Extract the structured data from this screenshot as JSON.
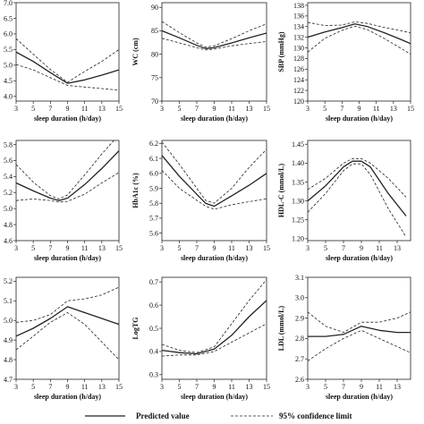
{
  "chart_data": [
    {
      "type": "line",
      "ylabel": "",
      "xlabel": "sleep duration (h/day)",
      "xticks": [
        3,
        5,
        7,
        9,
        11,
        13,
        15
      ],
      "yticks": [
        "4.0",
        "4.5",
        "5.0",
        "5.5",
        "6.0",
        "6.5",
        "7.0"
      ],
      "xlim": [
        3,
        15
      ],
      "ylim": [
        3.85,
        7.0
      ],
      "series": [
        {
          "name": "Predicted value",
          "x": [
            3,
            5,
            7,
            9,
            11,
            13,
            15
          ],
          "y": [
            5.42,
            5.12,
            4.76,
            4.42,
            4.53,
            4.68,
            4.85
          ]
        },
        {
          "name": "95% confidence limit",
          "x": [
            3,
            5,
            7,
            9,
            11,
            13,
            15
          ],
          "y": [
            5.85,
            5.35,
            4.86,
            4.45,
            4.8,
            5.12,
            5.5
          ]
        },
        {
          "name": "95% confidence limit",
          "x": [
            3,
            5,
            7,
            9,
            11,
            13,
            15
          ],
          "y": [
            5.02,
            4.85,
            4.6,
            4.35,
            4.3,
            4.25,
            4.2
          ]
        }
      ]
    },
    {
      "type": "line",
      "ylabel": "WC (cm)",
      "xlabel": "sleep duration (h/day)",
      "xticks": [
        3,
        5,
        7,
        9,
        11,
        13,
        15
      ],
      "yticks": [
        "70",
        "75",
        "80",
        "85",
        "90"
      ],
      "xlim": [
        3,
        15
      ],
      "ylim": [
        70,
        91
      ],
      "series": [
        {
          "name": "Predicted value",
          "x": [
            3,
            5,
            7,
            8,
            9,
            11,
            13,
            15
          ],
          "y": [
            85,
            83.5,
            81.9,
            81.2,
            81.4,
            82.4,
            83.5,
            84.5
          ]
        },
        {
          "name": "95% confidence limit",
          "x": [
            3,
            5,
            7,
            8,
            9,
            11,
            13,
            15
          ],
          "y": [
            87,
            84.6,
            82.4,
            81.5,
            81.8,
            83.3,
            85,
            86.5
          ]
        },
        {
          "name": "95% confidence limit",
          "x": [
            3,
            5,
            7,
            8,
            9,
            11,
            13,
            15
          ],
          "y": [
            83.4,
            82.4,
            81.4,
            80.9,
            81.1,
            81.8,
            82.3,
            82.7
          ]
        }
      ]
    },
    {
      "type": "line",
      "ylabel": "SBP (mmHg)",
      "xlabel": "sleep duration (h/day)",
      "xticks": [
        3,
        5,
        7,
        9,
        11,
        13,
        15
      ],
      "yticks": [
        "120",
        "122",
        "124",
        "126",
        "128",
        "130",
        "132",
        "134",
        "136",
        "138"
      ],
      "xlim": [
        3,
        15
      ],
      "ylim": [
        120,
        138.5
      ],
      "series": [
        {
          "name": "Predicted value",
          "x": [
            3,
            5,
            7,
            8.5,
            10,
            12,
            14,
            15
          ],
          "y": [
            132,
            133,
            133.8,
            134.5,
            134,
            132.8,
            131.5,
            130.8
          ]
        },
        {
          "name": "95% confidence limit",
          "x": [
            3,
            5,
            7,
            8.5,
            10,
            12,
            14,
            15
          ],
          "y": [
            134.8,
            134.2,
            134.3,
            134.9,
            134.6,
            133.8,
            133.2,
            132.8
          ]
        },
        {
          "name": "95% confidence limit",
          "x": [
            3,
            5,
            7,
            8.5,
            10,
            12,
            14,
            15
          ],
          "y": [
            129.2,
            131.8,
            133.3,
            134.1,
            133.4,
            131.7,
            129.8,
            128.8
          ]
        }
      ]
    },
    {
      "type": "line",
      "ylabel": "",
      "xlabel": "sleep duration (h/day)",
      "xticks": [
        3,
        5,
        7,
        9,
        11,
        13,
        15
      ],
      "yticks": [
        "4.6",
        "4.8",
        "5.0",
        "5.2",
        "5.4",
        "5.6",
        "5.8"
      ],
      "xlim": [
        3,
        15
      ],
      "ylim": [
        4.6,
        5.85
      ],
      "series": [
        {
          "name": "Predicted value",
          "x": [
            3,
            5,
            7,
            8,
            9,
            11,
            13,
            15
          ],
          "y": [
            5.32,
            5.22,
            5.13,
            5.1,
            5.13,
            5.3,
            5.5,
            5.72
          ]
        },
        {
          "name": "95% confidence limit",
          "x": [
            3,
            5,
            7,
            8,
            9,
            11,
            13,
            15
          ],
          "y": [
            5.55,
            5.33,
            5.16,
            5.12,
            5.17,
            5.42,
            5.68,
            5.92
          ]
        },
        {
          "name": "95% confidence limit",
          "x": [
            3,
            5,
            7,
            8,
            9,
            11,
            13,
            15
          ],
          "y": [
            5.1,
            5.12,
            5.1,
            5.08,
            5.09,
            5.18,
            5.32,
            5.45
          ]
        }
      ]
    },
    {
      "type": "line",
      "ylabel": "HbA1c (%)",
      "xlabel": "sleep duration (h/day)",
      "xticks": [
        3,
        5,
        7,
        9,
        11,
        13,
        15
      ],
      "yticks": [
        "5.6",
        "5.7",
        "5.8",
        "5.9",
        "6.0",
        "6.1",
        "6.2"
      ],
      "xlim": [
        3,
        15
      ],
      "ylim": [
        5.55,
        6.22
      ],
      "series": [
        {
          "name": "Predicted value",
          "x": [
            3,
            5,
            7,
            8,
            9,
            11,
            13,
            15
          ],
          "y": [
            6.12,
            5.98,
            5.86,
            5.8,
            5.78,
            5.85,
            5.92,
            6.0
          ]
        },
        {
          "name": "95% confidence limit",
          "x": [
            3,
            5,
            7,
            8,
            9,
            11,
            13,
            15
          ],
          "y": [
            6.21,
            6.06,
            5.9,
            5.82,
            5.8,
            5.9,
            6.04,
            6.16
          ]
        },
        {
          "name": "95% confidence limit",
          "x": [
            3,
            5,
            7,
            8,
            9,
            11,
            13,
            15
          ],
          "y": [
            6.02,
            5.9,
            5.82,
            5.78,
            5.76,
            5.79,
            5.81,
            5.83
          ]
        }
      ]
    },
    {
      "type": "line",
      "ylabel": "HDL-C (mmol/L)",
      "xlabel": "sleep duration (h/day)",
      "xticks": [
        3,
        5,
        7,
        9,
        11,
        13
      ],
      "yticks": [
        "1.20",
        "1.25",
        "1.30",
        "1.35",
        "1.40",
        "1.45"
      ],
      "xlim": [
        3,
        14.5
      ],
      "ylim": [
        1.195,
        1.46
      ],
      "series": [
        {
          "name": "Predicted value",
          "x": [
            3,
            5,
            7,
            8,
            9,
            10,
            12,
            14
          ],
          "y": [
            1.3,
            1.34,
            1.39,
            1.405,
            1.405,
            1.39,
            1.32,
            1.26
          ]
        },
        {
          "name": "95% confidence limit",
          "x": [
            3,
            5,
            7,
            8,
            9,
            10,
            12,
            14
          ],
          "y": [
            1.33,
            1.36,
            1.4,
            1.412,
            1.412,
            1.4,
            1.36,
            1.31
          ]
        },
        {
          "name": "95% confidence limit",
          "x": [
            3,
            5,
            7,
            8,
            9,
            10,
            12,
            14
          ],
          "y": [
            1.27,
            1.32,
            1.38,
            1.398,
            1.398,
            1.37,
            1.28,
            1.205
          ]
        }
      ]
    },
    {
      "type": "line",
      "ylabel": "",
      "xlabel": "sleep duration (h/day)",
      "xticks": [
        3,
        5,
        7,
        9,
        11,
        13,
        15
      ],
      "yticks": [
        "4.7",
        "4.8",
        "4.9",
        "5.0",
        "5.1",
        "5.2"
      ],
      "xlim": [
        3,
        15
      ],
      "ylim": [
        4.7,
        5.22
      ],
      "series": [
        {
          "name": "Predicted value",
          "x": [
            3,
            5,
            7,
            9,
            11,
            13,
            15
          ],
          "y": [
            4.92,
            4.96,
            5.01,
            5.07,
            5.04,
            5.01,
            4.98
          ]
        },
        {
          "name": "95% confidence limit",
          "x": [
            3,
            5,
            7,
            9,
            11,
            13,
            15
          ],
          "y": [
            4.99,
            5.0,
            5.03,
            5.1,
            5.11,
            5.13,
            5.17
          ]
        },
        {
          "name": "95% confidence limit",
          "x": [
            3,
            5,
            7,
            9,
            11,
            13,
            15
          ],
          "y": [
            4.85,
            4.92,
            4.99,
            5.04,
            4.98,
            4.89,
            4.8
          ]
        }
      ]
    },
    {
      "type": "line",
      "ylabel": "LogTG",
      "xlabel": "sleep duration (h/day)",
      "xticks": [
        3,
        5,
        7,
        9,
        11,
        13,
        15
      ],
      "yticks": [
        "0.3",
        "0.4",
        "0.5",
        "0.6",
        "0.7"
      ],
      "xlim": [
        3,
        15
      ],
      "ylim": [
        0.28,
        0.72
      ],
      "series": [
        {
          "name": "Predicted value",
          "x": [
            3,
            5,
            7,
            9,
            11,
            13,
            15
          ],
          "y": [
            0.405,
            0.395,
            0.39,
            0.41,
            0.47,
            0.55,
            0.62
          ]
        },
        {
          "name": "95% confidence limit",
          "x": [
            3,
            5,
            7,
            9,
            11,
            13,
            15
          ],
          "y": [
            0.43,
            0.405,
            0.395,
            0.42,
            0.52,
            0.62,
            0.71
          ]
        },
        {
          "name": "95% confidence limit",
          "x": [
            3,
            5,
            7,
            9,
            11,
            13,
            15
          ],
          "y": [
            0.38,
            0.385,
            0.385,
            0.4,
            0.44,
            0.48,
            0.52
          ]
        }
      ]
    },
    {
      "type": "line",
      "ylabel": "LDL (mmol/L)",
      "xlabel": "sleep duration (h/day)",
      "xticks": [
        3,
        5,
        7,
        9,
        11,
        13
      ],
      "yticks": [
        "2.6",
        "2.7",
        "2.8",
        "2.9",
        "3.0",
        "3.1"
      ],
      "xlim": [
        3,
        14.5
      ],
      "ylim": [
        2.6,
        3.1
      ],
      "series": [
        {
          "name": "Predicted value",
          "x": [
            3,
            5,
            7,
            9,
            11,
            13,
            14.5
          ],
          "y": [
            2.81,
            2.81,
            2.82,
            2.86,
            2.84,
            2.83,
            2.83
          ]
        },
        {
          "name": "95% confidence limit",
          "x": [
            3,
            5,
            7,
            9,
            11,
            13,
            14.5
          ],
          "y": [
            2.93,
            2.86,
            2.83,
            2.88,
            2.88,
            2.9,
            2.93
          ]
        },
        {
          "name": "95% confidence limit",
          "x": [
            3,
            5,
            7,
            9,
            11,
            13,
            14.5
          ],
          "y": [
            2.69,
            2.75,
            2.8,
            2.84,
            2.8,
            2.76,
            2.73
          ]
        }
      ]
    }
  ],
  "legend": {
    "predicted_label": "Predicted value",
    "ci_label": "95% confidence limit",
    "placement": "bottom"
  }
}
